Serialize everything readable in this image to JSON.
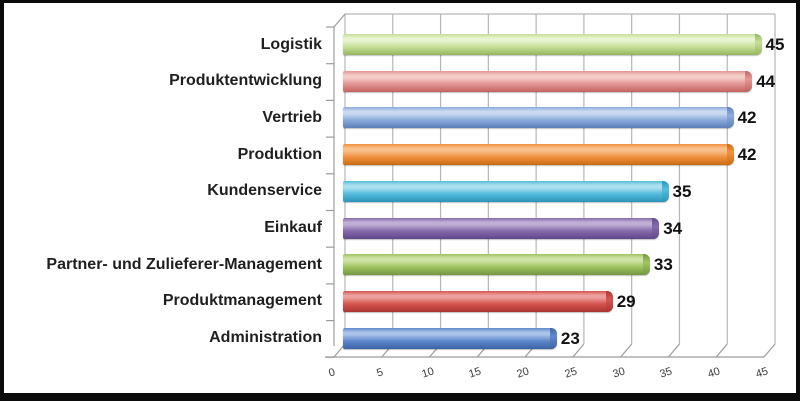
{
  "chart_data": {
    "type": "bar",
    "orientation": "horizontal",
    "style": "3d-excel-cylinder",
    "title": "",
    "xlabel": "",
    "ylabel": "",
    "categories": [
      "Logistik",
      "Produktentwicklung",
      "Vertrieb",
      "Produktion",
      "Kundenservice",
      "Einkauf",
      "Partner- und Zulieferer-Management",
      "Produktmanagement",
      "Administration"
    ],
    "values": [
      45,
      44,
      42,
      42,
      35,
      34,
      33,
      29,
      23
    ],
    "data_labels": [
      "45",
      "44",
      "42",
      "42",
      "35",
      "34",
      "33",
      "29",
      "23"
    ],
    "xlim": [
      0,
      45
    ],
    "x_ticks": [
      0,
      5,
      10,
      15,
      20,
      25,
      30,
      35,
      40,
      45
    ],
    "grid": true,
    "legend": false,
    "bar_colors": [
      {
        "main": "#c5df97",
        "light": "#e8f3cf",
        "dark": "#94b55e"
      },
      {
        "main": "#e39694",
        "light": "#f4cdc9",
        "dark": "#c26360"
      },
      {
        "main": "#8cabdb",
        "light": "#c9d9ef",
        "dark": "#5c7fb8"
      },
      {
        "main": "#f0913f",
        "light": "#fac08a",
        "dark": "#c96a12"
      },
      {
        "main": "#52bbdd",
        "light": "#abe0ee",
        "dark": "#2b94b8"
      },
      {
        "main": "#8569ab",
        "light": "#c0afd5",
        "dark": "#5f4787"
      },
      {
        "main": "#9ec35e",
        "light": "#d0e3a6",
        "dark": "#729740"
      },
      {
        "main": "#d5534e",
        "light": "#eca09c",
        "dark": "#a93531"
      },
      {
        "main": "#5e88cd",
        "light": "#aac2e7",
        "dark": "#3b63a4"
      }
    ]
  },
  "colors": {
    "background": "#ffffff",
    "frame_border": "#0b0b0b",
    "gridline": "#b6b6b6",
    "axis": "#9c9c9c",
    "category_label": "#1f1f1f",
    "value_label": "#111111",
    "tick_label": "#3c3c3c"
  }
}
